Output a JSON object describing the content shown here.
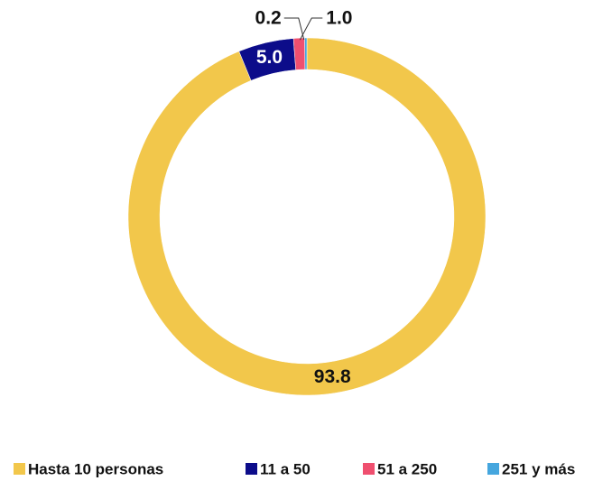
{
  "chart_data": {
    "type": "donut",
    "categories": [
      "Hasta 10 personas",
      "11 a 50",
      "51 a 250",
      "251 y más"
    ],
    "values": [
      93.8,
      5.0,
      1.0,
      0.2
    ],
    "value_labels": [
      "93.8",
      "5.0",
      "1.0",
      "0.2"
    ],
    "colors": [
      "#f2c74b",
      "#0c0c8a",
      "#ef4f6f",
      "#45a6de"
    ],
    "legend": "bottom"
  }
}
